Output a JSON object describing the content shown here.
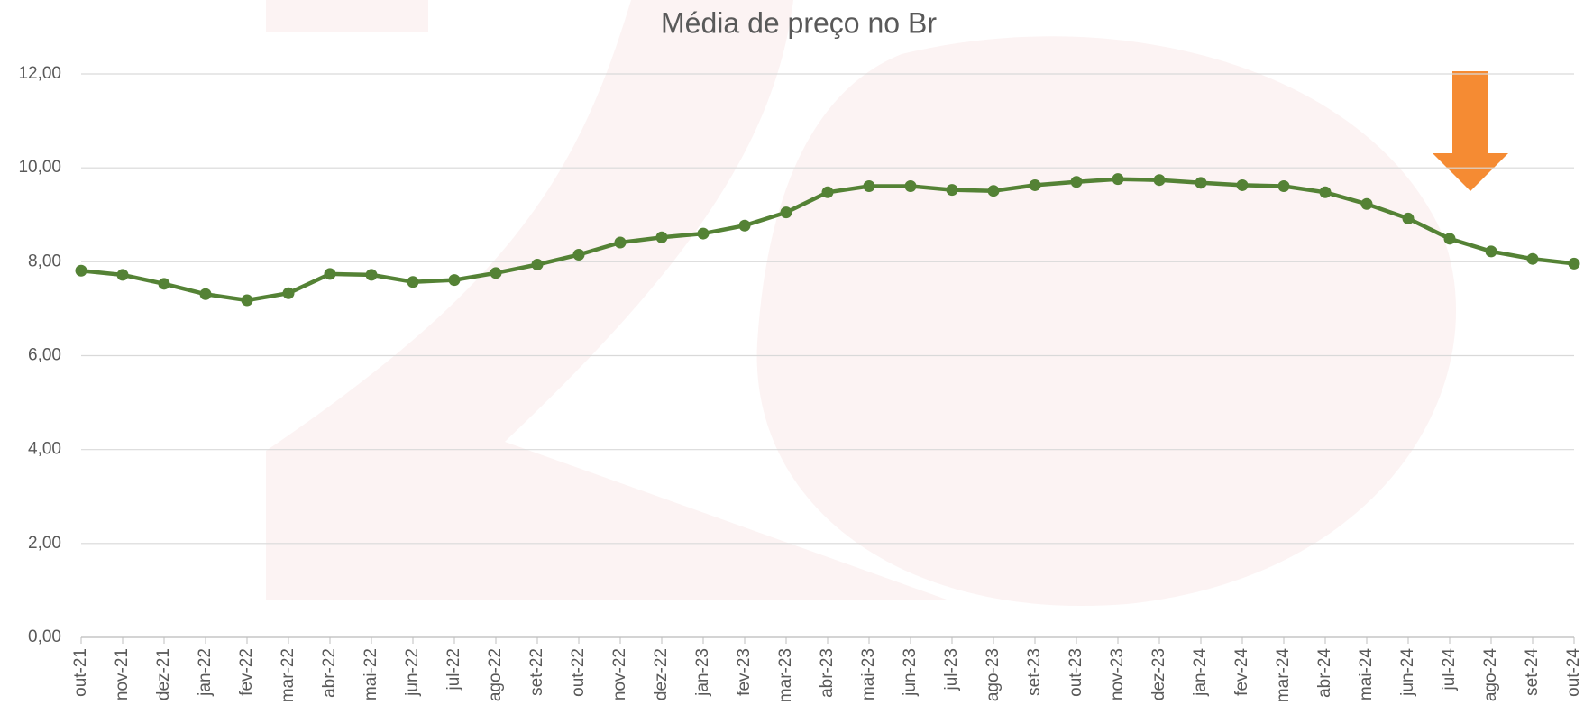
{
  "chart_data": {
    "type": "line",
    "title": "Média de preço no Br",
    "categories": [
      "out-21",
      "nov-21",
      "dez-21",
      "jan-22",
      "fev-22",
      "mar-22",
      "abr-22",
      "mai-22",
      "jun-22",
      "jul-22",
      "ago-22",
      "set-22",
      "out-22",
      "nov-22",
      "dez-22",
      "jan-23",
      "fev-23",
      "mar-23",
      "abr-23",
      "mai-23",
      "jun-23",
      "jul-23",
      "ago-23",
      "set-23",
      "out-23",
      "nov-23",
      "dez-23",
      "jan-24",
      "fev-24",
      "mar-24",
      "abr-24",
      "mai-24",
      "jun-24",
      "jul-24",
      "ago-24",
      "set-24",
      "out-24"
    ],
    "values": [
      7.81,
      7.72,
      7.53,
      7.31,
      7.18,
      7.33,
      7.74,
      7.72,
      7.57,
      7.61,
      7.76,
      7.94,
      8.15,
      8.41,
      8.52,
      8.6,
      8.77,
      9.05,
      9.48,
      9.61,
      9.61,
      9.53,
      9.51,
      9.63,
      9.7,
      9.76,
      9.74,
      9.68,
      9.63,
      9.61,
      9.48,
      9.23,
      8.92,
      8.49,
      8.22,
      8.06,
      7.96
    ],
    "color": "#548235",
    "ylim": [
      0,
      12
    ],
    "yticks": [
      {
        "value": 0,
        "label": "0,00"
      },
      {
        "value": 2,
        "label": "2,00"
      },
      {
        "value": 4,
        "label": "4,00"
      },
      {
        "value": 6,
        "label": "6,00"
      },
      {
        "value": 8,
        "label": "8,00"
      },
      {
        "value": 10,
        "label": "10,00"
      },
      {
        "value": 12,
        "label": "12,00"
      }
    ],
    "grid": true
  }
}
